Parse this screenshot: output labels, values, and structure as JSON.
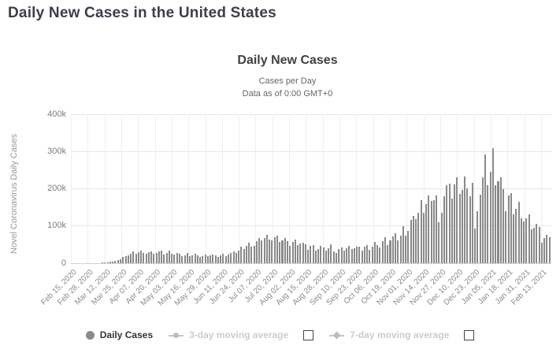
{
  "page": {
    "title": "Daily New Cases in the United States"
  },
  "chart": {
    "title": "Daily New Cases",
    "subtitle1": "Cases per Day",
    "subtitle2": "Data as of 0:00 GMT+0"
  },
  "legend": {
    "daily": "Daily Cases",
    "ma3": "3-day moving average",
    "ma7": "7-day moving average"
  },
  "colors": {
    "page_title": "#3b3f4c",
    "bar": "#8a8a8a",
    "grid": "#e6e6e6",
    "tick_label": "#8a8a8a",
    "legend_active": "#333333",
    "legend_inactive": "#cccccc"
  },
  "chart_data": {
    "type": "bar",
    "title": "Daily New Cases",
    "subtitle": [
      "Cases per Day",
      "Data as of 0:00 GMT+0"
    ],
    "ylabel": "Novel Coronavirus Daily Cases",
    "ylim": [
      0,
      400000
    ],
    "ytick_labels": [
      "0",
      "100k",
      "200k",
      "300k",
      "400k"
    ],
    "grid": true,
    "legend_position": "bottom",
    "x_start_date": "2020-02-15",
    "x_step_days": 2,
    "xtick_labels": [
      "Feb 15, 2020",
      "Feb 28, 2020",
      "Mar 12, 2020",
      "Mar 25, 2020",
      "Apr 07, 2020",
      "Apr 20, 2020",
      "May 03, 2020",
      "May 16, 2020",
      "May 29, 2020",
      "Jun 11, 2020",
      "Jun 24, 2020",
      "Jul 07, 2020",
      "Jul 20, 2020",
      "Aug 02, 2020",
      "Aug 15, 2020",
      "Aug 28, 2020",
      "Sep 10, 2020",
      "Sep 23, 2020",
      "Oct 06, 2020",
      "Oct 19, 2020",
      "Nov 01, 2020",
      "Nov 14, 2020",
      "Nov 27, 2020",
      "Dec 10, 2020",
      "Dec 23, 2020",
      "Jan 05, 2021",
      "Jan 18, 2021",
      "Jan 31, 2021",
      "Feb 13, 2021"
    ],
    "xtick_day_offsets": [
      0,
      13,
      26,
      39,
      52,
      65,
      78,
      91,
      104,
      117,
      130,
      143,
      156,
      169,
      182,
      195,
      208,
      221,
      234,
      247,
      260,
      273,
      286,
      299,
      312,
      325,
      338,
      351,
      364
    ],
    "series": [
      {
        "name": "Daily Cases",
        "values": [
          0,
          0,
          0,
          0,
          0,
          0,
          0,
          0,
          0,
          0,
          0,
          0,
          800,
          1200,
          1800,
          3500,
          5000,
          7000,
          9500,
          11000,
          17000,
          19000,
          20500,
          26000,
          32000,
          25500,
          30500,
          34000,
          28000,
          25500,
          30000,
          32500,
          25000,
          26500,
          32000,
          33500,
          22500,
          27500,
          34000,
          25000,
          24000,
          28500,
          25500,
          18500,
          21000,
          26500,
          19500,
          21500,
          26000,
          21500,
          17500,
          19000,
          24000,
          20000,
          21500,
          22500,
          22000,
          17500,
          21000,
          25500,
          19500,
          23500,
          27500,
          32000,
          27000,
          34500,
          45000,
          38500,
          46000,
          55000,
          45000,
          47500,
          60000,
          68500,
          60500,
          67500,
          77000,
          63500,
          61500,
          70500,
          74000,
          56500,
          61000,
          68500,
          58500,
          46500,
          57500,
          64000,
          48500,
          52500,
          56000,
          50500,
          35500,
          47000,
          49500,
          34500,
          38500,
          46000,
          42500,
          33500,
          40500,
          51000,
          32500,
          26500,
          37500,
          41500,
          33500,
          39500,
          47500,
          37500,
          39500,
          45500,
          45500,
          34500,
          43500,
          49500,
          35500,
          43500,
          56500,
          49500,
          41500,
          59500,
          69500,
          48500,
          60500,
          71500,
          79500,
          60500,
          74500,
          99000,
          74500,
          86500,
          116000,
          126000,
          119000,
          136000,
          170000,
          135000,
          158000,
          182000,
          167000,
          169000,
          181000,
          110000,
          135500,
          180000,
          210000,
          213000,
          174000,
          211000,
          231000,
          186000,
          197000,
          233000,
          201000,
          180000,
          216000,
          93000,
          140000,
          184000,
          230000,
          292000,
          210000,
          245000,
          308000,
          210000,
          220000,
          230000,
          198000,
          140000,
          183000,
          188000,
          132000,
          147000,
          165000,
          120000,
          112000,
          120000,
          132000,
          90000,
          95000,
          105000,
          97000,
          55000,
          68000,
          76000,
          70000
        ]
      }
    ]
  }
}
